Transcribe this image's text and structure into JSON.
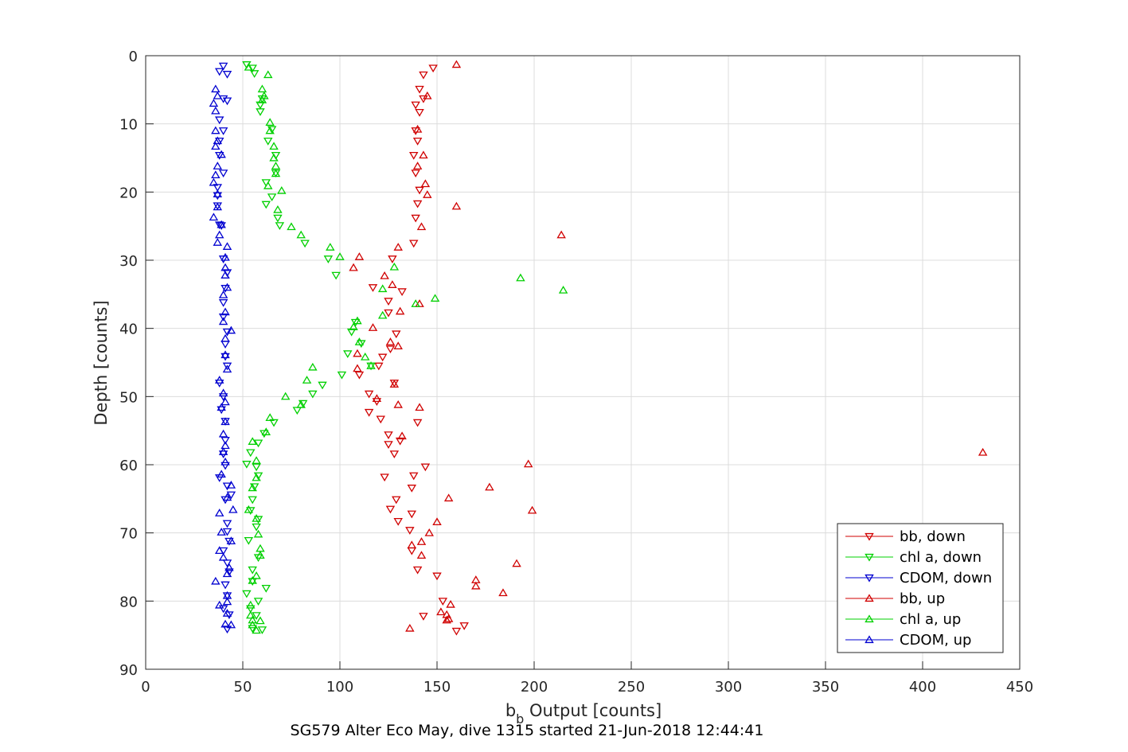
{
  "caption": "SG579 Alter Eco May, dive 1315 started 21-Jun-2018 12:44:41",
  "chart_data": {
    "type": "scatter",
    "title": "",
    "xlabel_main": "b",
    "xlabel_sub": "b",
    "xlabel_rest": " Output [counts]",
    "ylabel": "Depth [counts]",
    "xlim": [
      0,
      450
    ],
    "ylim": [
      0,
      90
    ],
    "y_reversed": true,
    "grid": true,
    "legend_placement": "bottom-right",
    "xticks": [
      "0",
      "50",
      "100",
      "150",
      "200",
      "250",
      "300",
      "350",
      "400",
      "450"
    ],
    "yticks": [
      "0",
      "10",
      "20",
      "30",
      "40",
      "50",
      "60",
      "70",
      "80",
      "90"
    ],
    "series": [
      {
        "name": "bb, down",
        "color": "#d00000",
        "marker": "triangle-down",
        "points": [
          [
            148,
            1.8
          ],
          [
            143,
            2.8
          ],
          [
            141,
            4.9
          ],
          [
            143,
            6.3
          ],
          [
            139,
            7.2
          ],
          [
            141,
            8.3
          ],
          [
            139,
            11.0
          ],
          [
            140,
            12.5
          ],
          [
            138,
            14.6
          ],
          [
            139,
            17.2
          ],
          [
            141,
            19.7
          ],
          [
            140,
            21.7
          ],
          [
            139,
            23.8
          ],
          [
            138,
            27.5
          ],
          [
            127,
            29.8
          ],
          [
            117,
            34.0
          ],
          [
            132,
            34.6
          ],
          [
            125,
            36.0
          ],
          [
            125,
            37.7
          ],
          [
            129,
            40.8
          ],
          [
            126,
            43.0
          ],
          [
            122,
            44.2
          ],
          [
            120,
            45.5
          ],
          [
            110,
            46.8
          ],
          [
            128,
            48.0
          ],
          [
            115,
            49.6
          ],
          [
            119,
            50.7
          ],
          [
            115,
            52.3
          ],
          [
            121,
            53.3
          ],
          [
            125,
            55.6
          ],
          [
            125,
            57.0
          ],
          [
            140,
            53.8
          ],
          [
            131,
            56.5
          ],
          [
            128,
            58.4
          ],
          [
            144,
            60.3
          ],
          [
            123,
            61.8
          ],
          [
            138,
            61.6
          ],
          [
            137,
            63.4
          ],
          [
            129,
            65.1
          ],
          [
            126,
            66.5
          ],
          [
            137,
            67.2
          ],
          [
            130,
            68.3
          ],
          [
            136,
            69.6
          ],
          [
            137,
            72.6
          ],
          [
            140,
            75.4
          ],
          [
            150,
            76.3
          ],
          [
            153,
            80.0
          ],
          [
            143,
            82.2
          ],
          [
            160,
            84.4
          ],
          [
            164,
            83.6
          ]
        ]
      },
      {
        "name": "chl a, down",
        "color": "#00d000",
        "marker": "triangle-down",
        "points": [
          [
            52,
            1.3
          ],
          [
            55,
            1.8
          ],
          [
            56,
            2.6
          ],
          [
            60,
            6.3
          ],
          [
            59,
            7.2
          ],
          [
            59,
            8.2
          ],
          [
            65,
            10.8
          ],
          [
            63,
            12.5
          ],
          [
            67,
            14.6
          ],
          [
            67,
            17.2
          ],
          [
            62,
            18.6
          ],
          [
            65,
            20.7
          ],
          [
            62,
            21.8
          ],
          [
            68,
            23.8
          ],
          [
            69,
            24.9
          ],
          [
            82,
            27.5
          ],
          [
            94,
            29.8
          ],
          [
            98,
            32.2
          ],
          [
            108,
            39.1
          ],
          [
            106,
            40.5
          ],
          [
            111,
            42.2
          ],
          [
            104,
            43.7
          ],
          [
            116,
            45.5
          ],
          [
            101,
            46.8
          ],
          [
            91,
            48.3
          ],
          [
            86,
            49.6
          ],
          [
            81,
            51.0
          ],
          [
            78,
            52.0
          ],
          [
            66,
            53.8
          ],
          [
            61,
            55.4
          ],
          [
            58,
            56.8
          ],
          [
            54,
            58.2
          ],
          [
            52,
            59.9
          ],
          [
            57,
            60.3
          ],
          [
            58,
            61.6
          ],
          [
            56,
            63.2
          ],
          [
            55,
            65.1
          ],
          [
            54,
            66.7
          ],
          [
            58,
            68.0
          ],
          [
            57,
            69.1
          ],
          [
            53,
            71.1
          ],
          [
            58,
            73.6
          ],
          [
            55,
            75.4
          ],
          [
            55,
            77.1
          ],
          [
            62,
            78.1
          ],
          [
            52,
            78.9
          ],
          [
            58,
            80.0
          ],
          [
            54,
            81.1
          ],
          [
            57,
            82.1
          ],
          [
            60,
            84.2
          ],
          [
            55,
            84.0
          ]
        ]
      },
      {
        "name": "CDOM, down",
        "color": "#0000d0",
        "marker": "triangle-down",
        "points": [
          [
            40,
            1.5
          ],
          [
            38,
            2.3
          ],
          [
            42,
            2.7
          ],
          [
            40,
            6.3
          ],
          [
            42,
            6.6
          ],
          [
            38,
            9.4
          ],
          [
            40,
            11.0
          ],
          [
            38,
            12.5
          ],
          [
            38,
            14.6
          ],
          [
            40,
            17.2
          ],
          [
            37,
            19.3
          ],
          [
            37,
            20.5
          ],
          [
            37,
            22.0
          ],
          [
            38,
            24.8
          ],
          [
            39,
            24.9
          ],
          [
            40,
            29.8
          ],
          [
            42,
            31.8
          ],
          [
            41,
            34.1
          ],
          [
            40,
            36.2
          ],
          [
            40,
            38.3
          ],
          [
            42,
            40.5
          ],
          [
            41,
            42.3
          ],
          [
            41,
            44.1
          ],
          [
            42,
            45.5
          ],
          [
            38,
            48.0
          ],
          [
            40,
            50.0
          ],
          [
            39,
            51.9
          ],
          [
            41,
            53.6
          ],
          [
            41,
            56.4
          ],
          [
            40,
            58.4
          ],
          [
            41,
            60.1
          ],
          [
            38,
            61.9
          ],
          [
            42,
            63.1
          ],
          [
            44,
            64.4
          ],
          [
            41,
            65.1
          ],
          [
            42,
            68.6
          ],
          [
            42,
            69.8
          ],
          [
            43,
            71.2
          ],
          [
            40,
            72.6
          ],
          [
            42,
            74.4
          ],
          [
            43,
            75.7
          ],
          [
            41,
            77.6
          ],
          [
            42,
            79.2
          ],
          [
            40,
            81.1
          ],
          [
            43,
            82.0
          ],
          [
            42,
            84.1
          ]
        ]
      },
      {
        "name": "bb, up",
        "color": "#d00000",
        "marker": "triangle-up",
        "points": [
          [
            160,
            1.3
          ],
          [
            145,
            5.9
          ],
          [
            140,
            10.8
          ],
          [
            143,
            14.6
          ],
          [
            140,
            16.2
          ],
          [
            144,
            18.8
          ],
          [
            145,
            20.4
          ],
          [
            160,
            22.1
          ],
          [
            142,
            25.1
          ],
          [
            214,
            26.3
          ],
          [
            130,
            28.1
          ],
          [
            110,
            29.5
          ],
          [
            107,
            31.1
          ],
          [
            123,
            32.3
          ],
          [
            127,
            33.6
          ],
          [
            131,
            37.5
          ],
          [
            117,
            39.9
          ],
          [
            141,
            36.4
          ],
          [
            126,
            42.0
          ],
          [
            130,
            42.6
          ],
          [
            109,
            43.7
          ],
          [
            109,
            45.9
          ],
          [
            128,
            48.2
          ],
          [
            119,
            50.3
          ],
          [
            130,
            51.2
          ],
          [
            132,
            55.8
          ],
          [
            141,
            51.6
          ],
          [
            431,
            58.2
          ],
          [
            197,
            59.9
          ],
          [
            177,
            63.3
          ],
          [
            156,
            64.9
          ],
          [
            199,
            66.7
          ],
          [
            150,
            68.4
          ],
          [
            146,
            70.0
          ],
          [
            142,
            71.3
          ],
          [
            137,
            71.8
          ],
          [
            142,
            73.3
          ],
          [
            191,
            74.5
          ],
          [
            170,
            76.9
          ],
          [
            170,
            77.8
          ],
          [
            184,
            78.8
          ],
          [
            157,
            80.5
          ],
          [
            152,
            81.6
          ],
          [
            155,
            82.0
          ],
          [
            155,
            82.8
          ],
          [
            156,
            82.6
          ],
          [
            136,
            84.0
          ]
        ]
      },
      {
        "name": "chl a, up",
        "color": "#00d000",
        "marker": "triangle-up",
        "points": [
          [
            53,
            1.7
          ],
          [
            63,
            2.8
          ],
          [
            60,
            4.9
          ],
          [
            61,
            5.9
          ],
          [
            60,
            6.5
          ],
          [
            64,
            9.8
          ],
          [
            64,
            11.0
          ],
          [
            66,
            13.3
          ],
          [
            66,
            15.0
          ],
          [
            67,
            16.2
          ],
          [
            67,
            17.3
          ],
          [
            63,
            19.1
          ],
          [
            70,
            19.8
          ],
          [
            68,
            22.6
          ],
          [
            75,
            25.1
          ],
          [
            80,
            26.3
          ],
          [
            95,
            28.1
          ],
          [
            100,
            29.5
          ],
          [
            128,
            31.0
          ],
          [
            193,
            32.6
          ],
          [
            122,
            34.2
          ],
          [
            215,
            34.4
          ],
          [
            149,
            35.6
          ],
          [
            139,
            36.4
          ],
          [
            122,
            38.1
          ],
          [
            109,
            38.9
          ],
          [
            107,
            39.8
          ],
          [
            110,
            42.0
          ],
          [
            113,
            44.2
          ],
          [
            116,
            45.5
          ],
          [
            86,
            45.7
          ],
          [
            83,
            47.6
          ],
          [
            72,
            50.0
          ],
          [
            80,
            51.2
          ],
          [
            64,
            53.1
          ],
          [
            62,
            55.2
          ],
          [
            55,
            56.6
          ],
          [
            57,
            59.4
          ],
          [
            57,
            61.9
          ],
          [
            55,
            63.4
          ],
          [
            53,
            66.6
          ],
          [
            57,
            67.9
          ],
          [
            58,
            70.2
          ],
          [
            59,
            72.3
          ],
          [
            59,
            73.3
          ],
          [
            57,
            76.3
          ],
          [
            55,
            77.0
          ],
          [
            54,
            80.6
          ],
          [
            54,
            82.1
          ],
          [
            55,
            82.8
          ],
          [
            59,
            82.9
          ],
          [
            55,
            83.5
          ],
          [
            57,
            84.3
          ]
        ]
      },
      {
        "name": "CDOM, up",
        "color": "#0000d0",
        "marker": "triangle-up",
        "points": [
          [
            36,
            4.9
          ],
          [
            37,
            5.9
          ],
          [
            35,
            7.0
          ],
          [
            36,
            8.1
          ],
          [
            36,
            11.0
          ],
          [
            37,
            12.5
          ],
          [
            36,
            13.3
          ],
          [
            39,
            14.5
          ],
          [
            37,
            16.2
          ],
          [
            36,
            17.5
          ],
          [
            35,
            18.6
          ],
          [
            37,
            20.3
          ],
          [
            37,
            22.2
          ],
          [
            35,
            23.7
          ],
          [
            39,
            24.8
          ],
          [
            38,
            26.3
          ],
          [
            37,
            27.4
          ],
          [
            42,
            28.0
          ],
          [
            41,
            29.6
          ],
          [
            41,
            31.1
          ],
          [
            41,
            32.2
          ],
          [
            42,
            34.0
          ],
          [
            40,
            35.1
          ],
          [
            41,
            37.6
          ],
          [
            40,
            39.0
          ],
          [
            44,
            40.3
          ],
          [
            41,
            41.5
          ],
          [
            41,
            43.9
          ],
          [
            42,
            46.0
          ],
          [
            38,
            47.6
          ],
          [
            40,
            49.5
          ],
          [
            41,
            50.8
          ],
          [
            39,
            51.6
          ],
          [
            41,
            53.7
          ],
          [
            40,
            55.5
          ],
          [
            41,
            57.2
          ],
          [
            40,
            58.1
          ],
          [
            41,
            59.6
          ],
          [
            39,
            61.4
          ],
          [
            44,
            63.0
          ],
          [
            42,
            64.8
          ],
          [
            45,
            66.6
          ],
          [
            38,
            67.1
          ],
          [
            39,
            69.9
          ],
          [
            44,
            71.2
          ],
          [
            38,
            72.6
          ],
          [
            40,
            73.6
          ],
          [
            43,
            75.1
          ],
          [
            42,
            76.0
          ],
          [
            36,
            77.1
          ],
          [
            42,
            79.2
          ],
          [
            42,
            80.1
          ],
          [
            38,
            80.6
          ],
          [
            42,
            81.8
          ],
          [
            41,
            83.4
          ],
          [
            44,
            83.5
          ]
        ]
      }
    ]
  }
}
